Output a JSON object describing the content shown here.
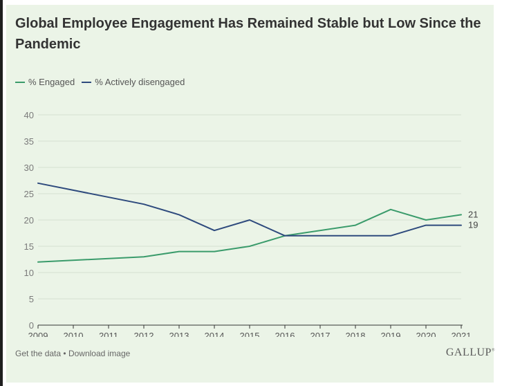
{
  "chart_data": {
    "type": "line",
    "title": "Global Employee Engagement Has Remained Stable but Low Since the Pandemic",
    "xlabel": "",
    "ylabel": "",
    "x": [
      2009,
      2010,
      2011,
      2012,
      2013,
      2014,
      2015,
      2016,
      2017,
      2018,
      2019,
      2020,
      2021
    ],
    "x_tick_labels": [
      "2009",
      "2010",
      "2011",
      "2012",
      "2013",
      "2014",
      "2015",
      "2016",
      "2017",
      "2018",
      "2019",
      "2020",
      "2021"
    ],
    "ylim": [
      0,
      40
    ],
    "y_ticks": [
      0,
      5,
      10,
      15,
      20,
      25,
      30,
      35,
      40
    ],
    "grid": true,
    "legend_position": "top-left",
    "series": [
      {
        "name": "% Engaged",
        "color": "#3a9b6b",
        "points": [
          [
            2009,
            12
          ],
          [
            2012,
            13
          ],
          [
            2013,
            14
          ],
          [
            2014,
            14
          ],
          [
            2015,
            15
          ],
          [
            2016,
            17
          ],
          [
            2018,
            19
          ],
          [
            2019,
            22
          ],
          [
            2020,
            20
          ],
          [
            2021,
            21
          ]
        ],
        "end_label": "21"
      },
      {
        "name": "% Actively disengaged",
        "color": "#2e4a7d",
        "points": [
          [
            2009,
            27
          ],
          [
            2012,
            23
          ],
          [
            2013,
            21
          ],
          [
            2014,
            18
          ],
          [
            2015,
            20
          ],
          [
            2016,
            17
          ],
          [
            2019,
            17
          ],
          [
            2020,
            19
          ],
          [
            2021,
            19
          ]
        ],
        "end_label": "19"
      }
    ]
  },
  "footer": {
    "get_data": "Get the data",
    "separator": "•",
    "download": "Download image"
  },
  "brand": {
    "name": "GALLUP",
    "mark": "®"
  },
  "colors": {
    "background": "#ebf4e7",
    "grid": "#d5dfd1",
    "axis": "#333333",
    "tick_text": "#7a7a7a"
  }
}
